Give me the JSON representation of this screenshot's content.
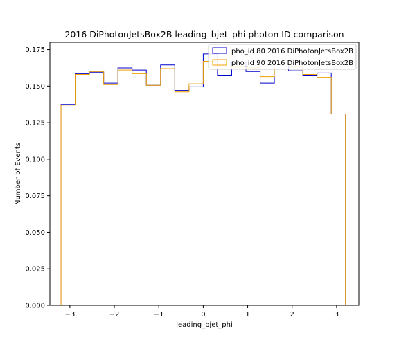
{
  "chart_data": {
    "type": "line",
    "title": "2016 DiPhotonJetsBox2B leading_bjet_phi photon ID comparison",
    "xlabel": "leading_bjet_phi",
    "ylabel": "Number of Events",
    "xlim": [
      -3.45,
      3.5
    ],
    "ylim": [
      0.0,
      0.18
    ],
    "xticks": [
      -3,
      -2,
      -1,
      0,
      1,
      2,
      3
    ],
    "xtick_labels": [
      "−3",
      "−2",
      "−1",
      "0",
      "1",
      "2",
      "3"
    ],
    "yticks": [
      0.0,
      0.025,
      0.05,
      0.075,
      0.1,
      0.125,
      0.15,
      0.175
    ],
    "ytick_labels": [
      "0.000",
      "0.025",
      "0.050",
      "0.075",
      "0.100",
      "0.125",
      "0.150",
      "0.175"
    ],
    "bin_edges": [
      -3.2,
      -2.88,
      -2.56,
      -2.24,
      -1.92,
      -1.6,
      -1.28,
      -0.96,
      -0.64,
      -0.32,
      0.0,
      0.32,
      0.64,
      0.96,
      1.28,
      1.6,
      1.92,
      2.24,
      2.56,
      2.88,
      3.2
    ],
    "legend_position": "top-right",
    "grid": false,
    "series": [
      {
        "name": "pho_id 80 2016 DiPhotonJetsBox2B",
        "color": "#0000cc",
        "values": [
          0.1375,
          0.1585,
          0.1595,
          0.152,
          0.1625,
          0.161,
          0.1505,
          0.1645,
          0.147,
          0.1495,
          0.172,
          0.157,
          0.1665,
          0.16,
          0.152,
          0.1665,
          0.1605,
          0.157,
          0.159,
          0.131
        ]
      },
      {
        "name": "pho_id 90 2016 DiPhotonJetsBox2B",
        "color": "#f0a000",
        "values": [
          0.137,
          0.158,
          0.16,
          0.151,
          0.161,
          0.1585,
          0.1505,
          0.162,
          0.146,
          0.1515,
          0.167,
          0.1615,
          0.163,
          0.1625,
          0.1565,
          0.1665,
          0.1635,
          0.158,
          0.156,
          0.131
        ]
      }
    ]
  }
}
